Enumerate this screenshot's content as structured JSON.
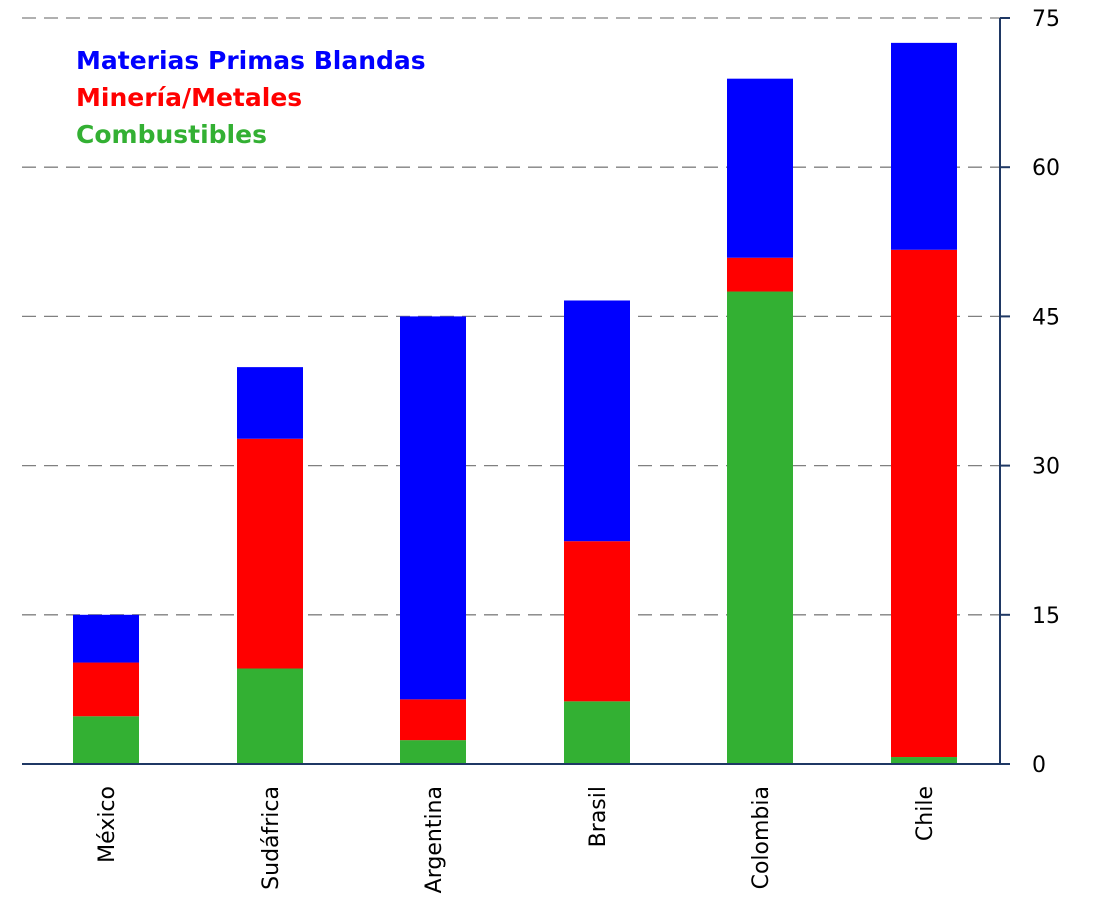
{
  "chart_data": {
    "type": "bar",
    "stacked": true,
    "categories": [
      "México",
      "Sudáfrica",
      "Argentina",
      "Brasil",
      "Colombia",
      "Chile"
    ],
    "series": [
      {
        "name": "Combustibles",
        "color": "#33b033",
        "values": [
          4.8,
          9.6,
          2.4,
          6.3,
          47.5,
          0.7
        ]
      },
      {
        "name": "Minería/Metales",
        "color": "#ff0000",
        "values": [
          5.4,
          23.1,
          4.1,
          16.1,
          3.4,
          51.0
        ]
      },
      {
        "name": "Materias Primas Blandas",
        "color": "#0000ff",
        "values": [
          4.8,
          7.2,
          38.5,
          24.2,
          18.0,
          20.8
        ]
      }
    ],
    "legend": {
      "placement": "top-left",
      "items": [
        {
          "label": "Materias Primas Blandas",
          "color": "#0000ff"
        },
        {
          "label": "Minería/Metales",
          "color": "#ff0000"
        },
        {
          "label": "Combustibles",
          "color": "#33b033"
        }
      ]
    },
    "y_axis": {
      "side": "right",
      "ticks": [
        0,
        15,
        30,
        45,
        60,
        75
      ],
      "tick_labels": [
        "0",
        "15",
        "30",
        "45",
        "60",
        "75"
      ],
      "ylim": [
        0,
        75
      ]
    },
    "grid": {
      "horizontal": true,
      "style": "dashed"
    },
    "title": "",
    "xlabel": "",
    "ylabel": ""
  }
}
